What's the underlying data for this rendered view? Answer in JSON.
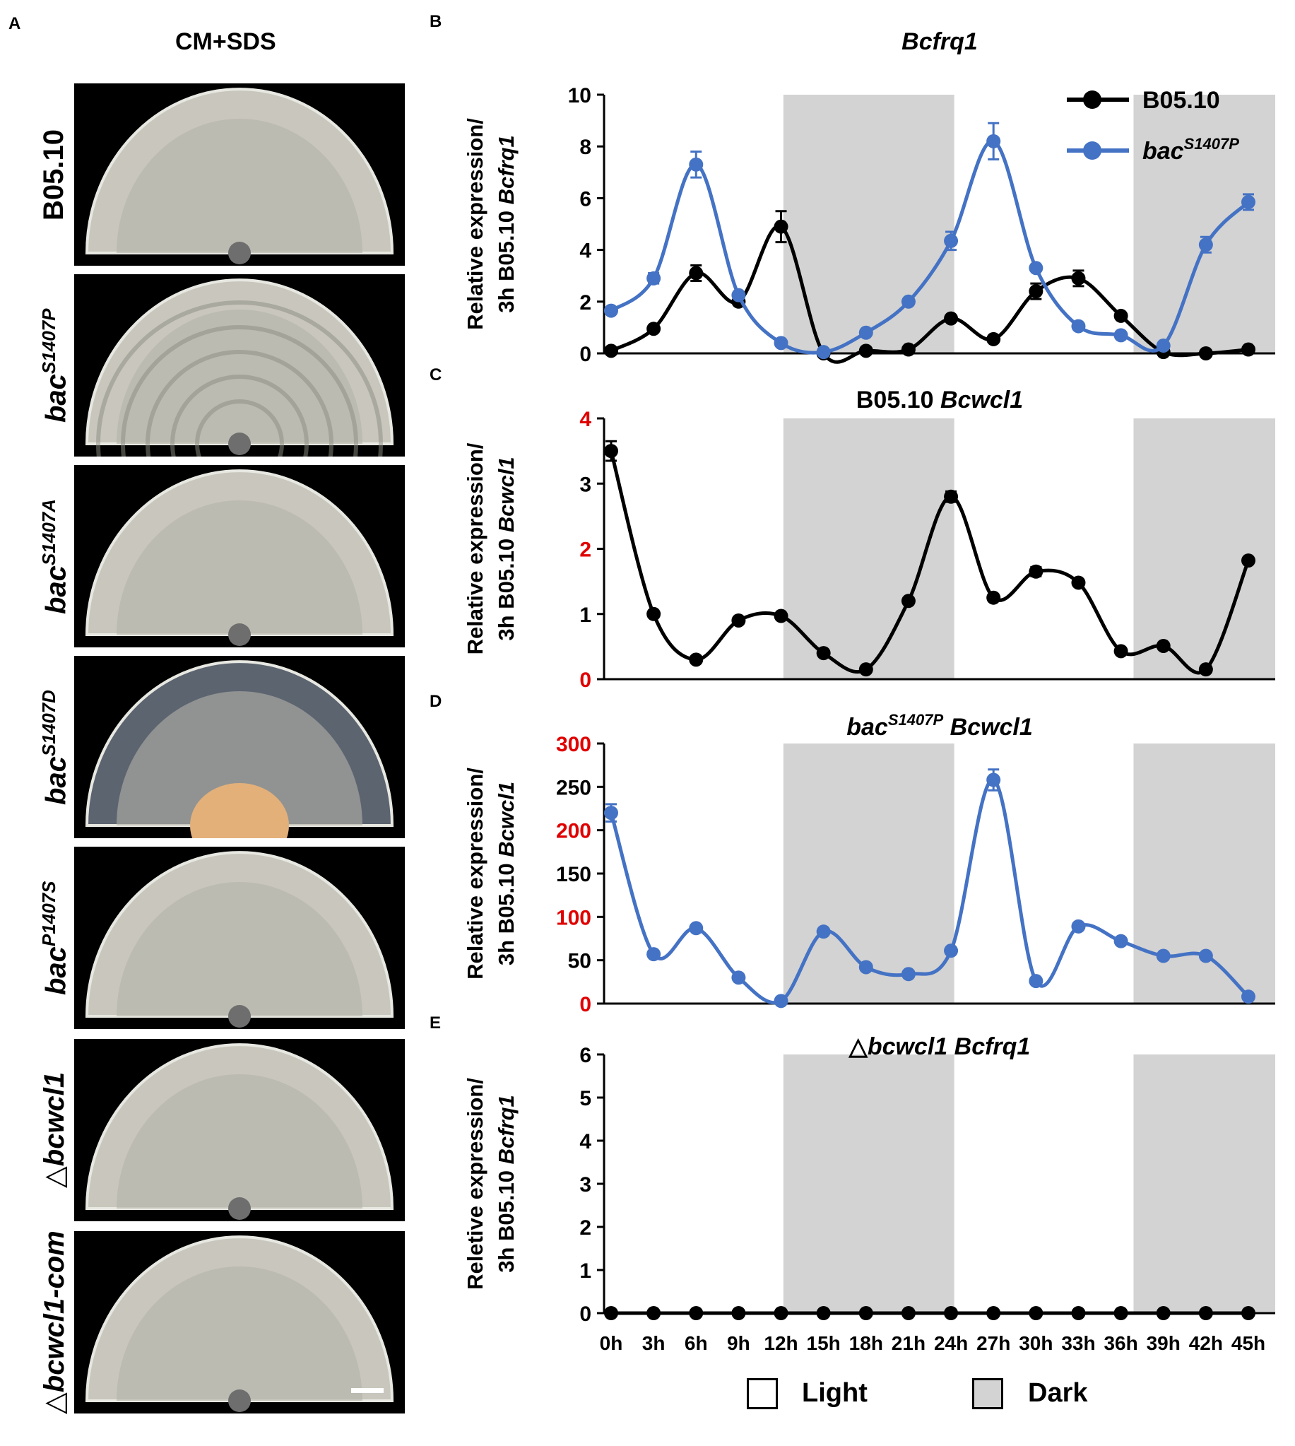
{
  "figure": {
    "panel_a": {
      "letter": "A",
      "column_title": "CM+SDS",
      "strains": [
        {
          "base": "B05.10",
          "sup": "",
          "italic": false
        },
        {
          "base": "bac",
          "sup": "S1407P",
          "italic": true
        },
        {
          "base": "bac",
          "sup": "S1407A",
          "italic": true
        },
        {
          "base": "bac",
          "sup": "S1407D",
          "italic": true
        },
        {
          "base": "bac",
          "sup": "P1407S",
          "italic": true
        },
        {
          "base": "△bcwcl1",
          "sup": "",
          "italic": true
        },
        {
          "base": "△bcwcl1-com",
          "sup": "",
          "italic": true
        }
      ]
    },
    "shared_x_ticks": [
      "0h",
      "3h",
      "6h",
      "9h",
      "12h",
      "15h",
      "18h",
      "21h",
      "24h",
      "27h",
      "30h",
      "33h",
      "36h",
      "39h",
      "42h",
      "45h"
    ],
    "bottom_legend": {
      "light": "Light",
      "dark": "Dark"
    },
    "colors": {
      "black_series": "#000000",
      "blue_series": "#4472C4",
      "dark_shade": "#D3D3D3",
      "red_tick": "#E00000"
    }
  },
  "chart_data": [
    {
      "panel": "B",
      "type": "line",
      "title": "Bcfrq1",
      "title_italic": true,
      "ylabel_line1": "Relative expression/",
      "ylabel_line2_plain": "3h B05.10 ",
      "ylabel_line2_italic": "Bcfrq1",
      "ylim": [
        0,
        10
      ],
      "yticks": [
        "0",
        "2",
        "4",
        "6",
        "8",
        "10"
      ],
      "red_yticks": [],
      "dark_ranges": [
        [
          12,
          24
        ],
        [
          36,
          46
        ]
      ],
      "x": [
        0,
        3,
        6,
        9,
        12,
        15,
        18,
        21,
        24,
        27,
        30,
        33,
        36,
        39,
        42,
        45
      ],
      "show_x_labels": false,
      "series": [
        {
          "name": "B05.10",
          "color": "#000000",
          "values": [
            0.1,
            0.95,
            3.1,
            2.0,
            4.9,
            0.0,
            0.1,
            0.15,
            1.35,
            0.55,
            2.4,
            2.9,
            1.45,
            0.05,
            0.0,
            0.15
          ],
          "errors": [
            0.05,
            0.1,
            0.3,
            0.1,
            0.6,
            0.05,
            0.05,
            0.05,
            0.1,
            0.05,
            0.3,
            0.3,
            0.1,
            0.05,
            0.05,
            0.05
          ]
        },
        {
          "name_base": "bac",
          "name_sup": "S1407P",
          "color": "#4472C4",
          "values": [
            1.65,
            2.9,
            7.3,
            2.25,
            0.4,
            0.05,
            0.8,
            2.0,
            4.35,
            8.2,
            3.3,
            1.05,
            0.7,
            0.3,
            4.2,
            5.85
          ],
          "errors": [
            0.1,
            0.2,
            0.5,
            0.1,
            0.05,
            0.05,
            0.1,
            0.1,
            0.35,
            0.7,
            0.1,
            0.1,
            0.1,
            0.1,
            0.3,
            0.3
          ]
        }
      ],
      "legend": [
        {
          "label": "B05.10",
          "italic": false,
          "sup": ""
        },
        {
          "label": "bac",
          "italic": true,
          "sup": "S1407P"
        }
      ]
    },
    {
      "panel": "C",
      "type": "line",
      "title_plain": "B05.10 ",
      "title_italic": "Bcwcl1",
      "ylabel_line1": "Relative expression/",
      "ylabel_line2_plain": "3h B05.10 ",
      "ylabel_line2_italic": "Bcwcl1",
      "ylim": [
        0,
        4
      ],
      "yticks": [
        "0",
        "1",
        "2",
        "3",
        "4"
      ],
      "red_yticks": [
        "0",
        "2",
        "4"
      ],
      "dark_ranges": [
        [
          12,
          24
        ],
        [
          36,
          46
        ]
      ],
      "x": [
        0,
        3,
        6,
        9,
        12,
        15,
        18,
        21,
        24,
        27,
        30,
        33,
        36,
        39,
        42,
        45
      ],
      "show_x_labels": false,
      "series": [
        {
          "name": "B05.10 Bcwcl1",
          "color": "#000000",
          "values": [
            3.5,
            1.0,
            0.3,
            0.9,
            0.97,
            0.4,
            0.15,
            1.2,
            2.8,
            1.25,
            1.65,
            1.48,
            0.43,
            0.51,
            0.15,
            1.82
          ],
          "errors": [
            0.15,
            0.05,
            0.05,
            0.05,
            0.05,
            0.05,
            0.05,
            0.05,
            0.08,
            0.05,
            0.07,
            0.05,
            0.05,
            0.05,
            0.05,
            0.05
          ]
        }
      ]
    },
    {
      "panel": "D",
      "type": "line",
      "title_plain_base": "bac",
      "title_sup": "S1407P",
      "title_italic": "Bcwcl1",
      "ylabel_line1": "Relative expression/",
      "ylabel_line2_plain": "3h B05.10 ",
      "ylabel_line2_italic": "Bcwcl1",
      "ylim": [
        0,
        300
      ],
      "yticks": [
        "0",
        "50",
        "100",
        "150",
        "200",
        "250",
        "300"
      ],
      "red_yticks": [
        "0",
        "100",
        "200",
        "300"
      ],
      "dark_ranges": [
        [
          12,
          24
        ],
        [
          36,
          46
        ]
      ],
      "x": [
        0,
        3,
        6,
        9,
        12,
        15,
        18,
        21,
        24,
        27,
        30,
        33,
        36,
        39,
        42,
        45
      ],
      "show_x_labels": false,
      "series": [
        {
          "name": "bacS1407P Bcwcl1",
          "color": "#4472C4",
          "values": [
            220,
            57,
            87,
            30,
            3,
            83,
            42,
            34,
            61,
            258,
            26,
            89,
            72,
            55,
            55,
            8
          ],
          "errors": [
            10,
            3,
            3,
            3,
            2,
            3,
            3,
            3,
            3,
            12,
            2,
            3,
            3,
            3,
            3,
            2
          ]
        }
      ]
    },
    {
      "panel": "E",
      "type": "line",
      "title_plain": "△",
      "title_italic": "bcwcl1 Bcfrq1",
      "ylabel_line1": "Reletive expression/",
      "ylabel_line2_plain": "3h B05.10 ",
      "ylabel_line2_italic": "Bcfrq1",
      "ylim": [
        0,
        6
      ],
      "yticks": [
        "0",
        "1",
        "2",
        "3",
        "4",
        "5",
        "6"
      ],
      "red_yticks": [],
      "dark_ranges": [
        [
          12,
          24
        ],
        [
          36,
          46
        ]
      ],
      "x": [
        0,
        3,
        6,
        9,
        12,
        15,
        18,
        21,
        24,
        27,
        30,
        33,
        36,
        39,
        42,
        45
      ],
      "show_x_labels": true,
      "series": [
        {
          "name": "△bcwcl1 Bcfrq1",
          "color": "#000000",
          "values": [
            0,
            0,
            0,
            0,
            0,
            0,
            0,
            0,
            0,
            0,
            0,
            0,
            0,
            0,
            0,
            0
          ],
          "errors": [
            0,
            0,
            0,
            0,
            0,
            0,
            0,
            0,
            0,
            0,
            0,
            0,
            0,
            0,
            0,
            0
          ]
        }
      ]
    }
  ]
}
